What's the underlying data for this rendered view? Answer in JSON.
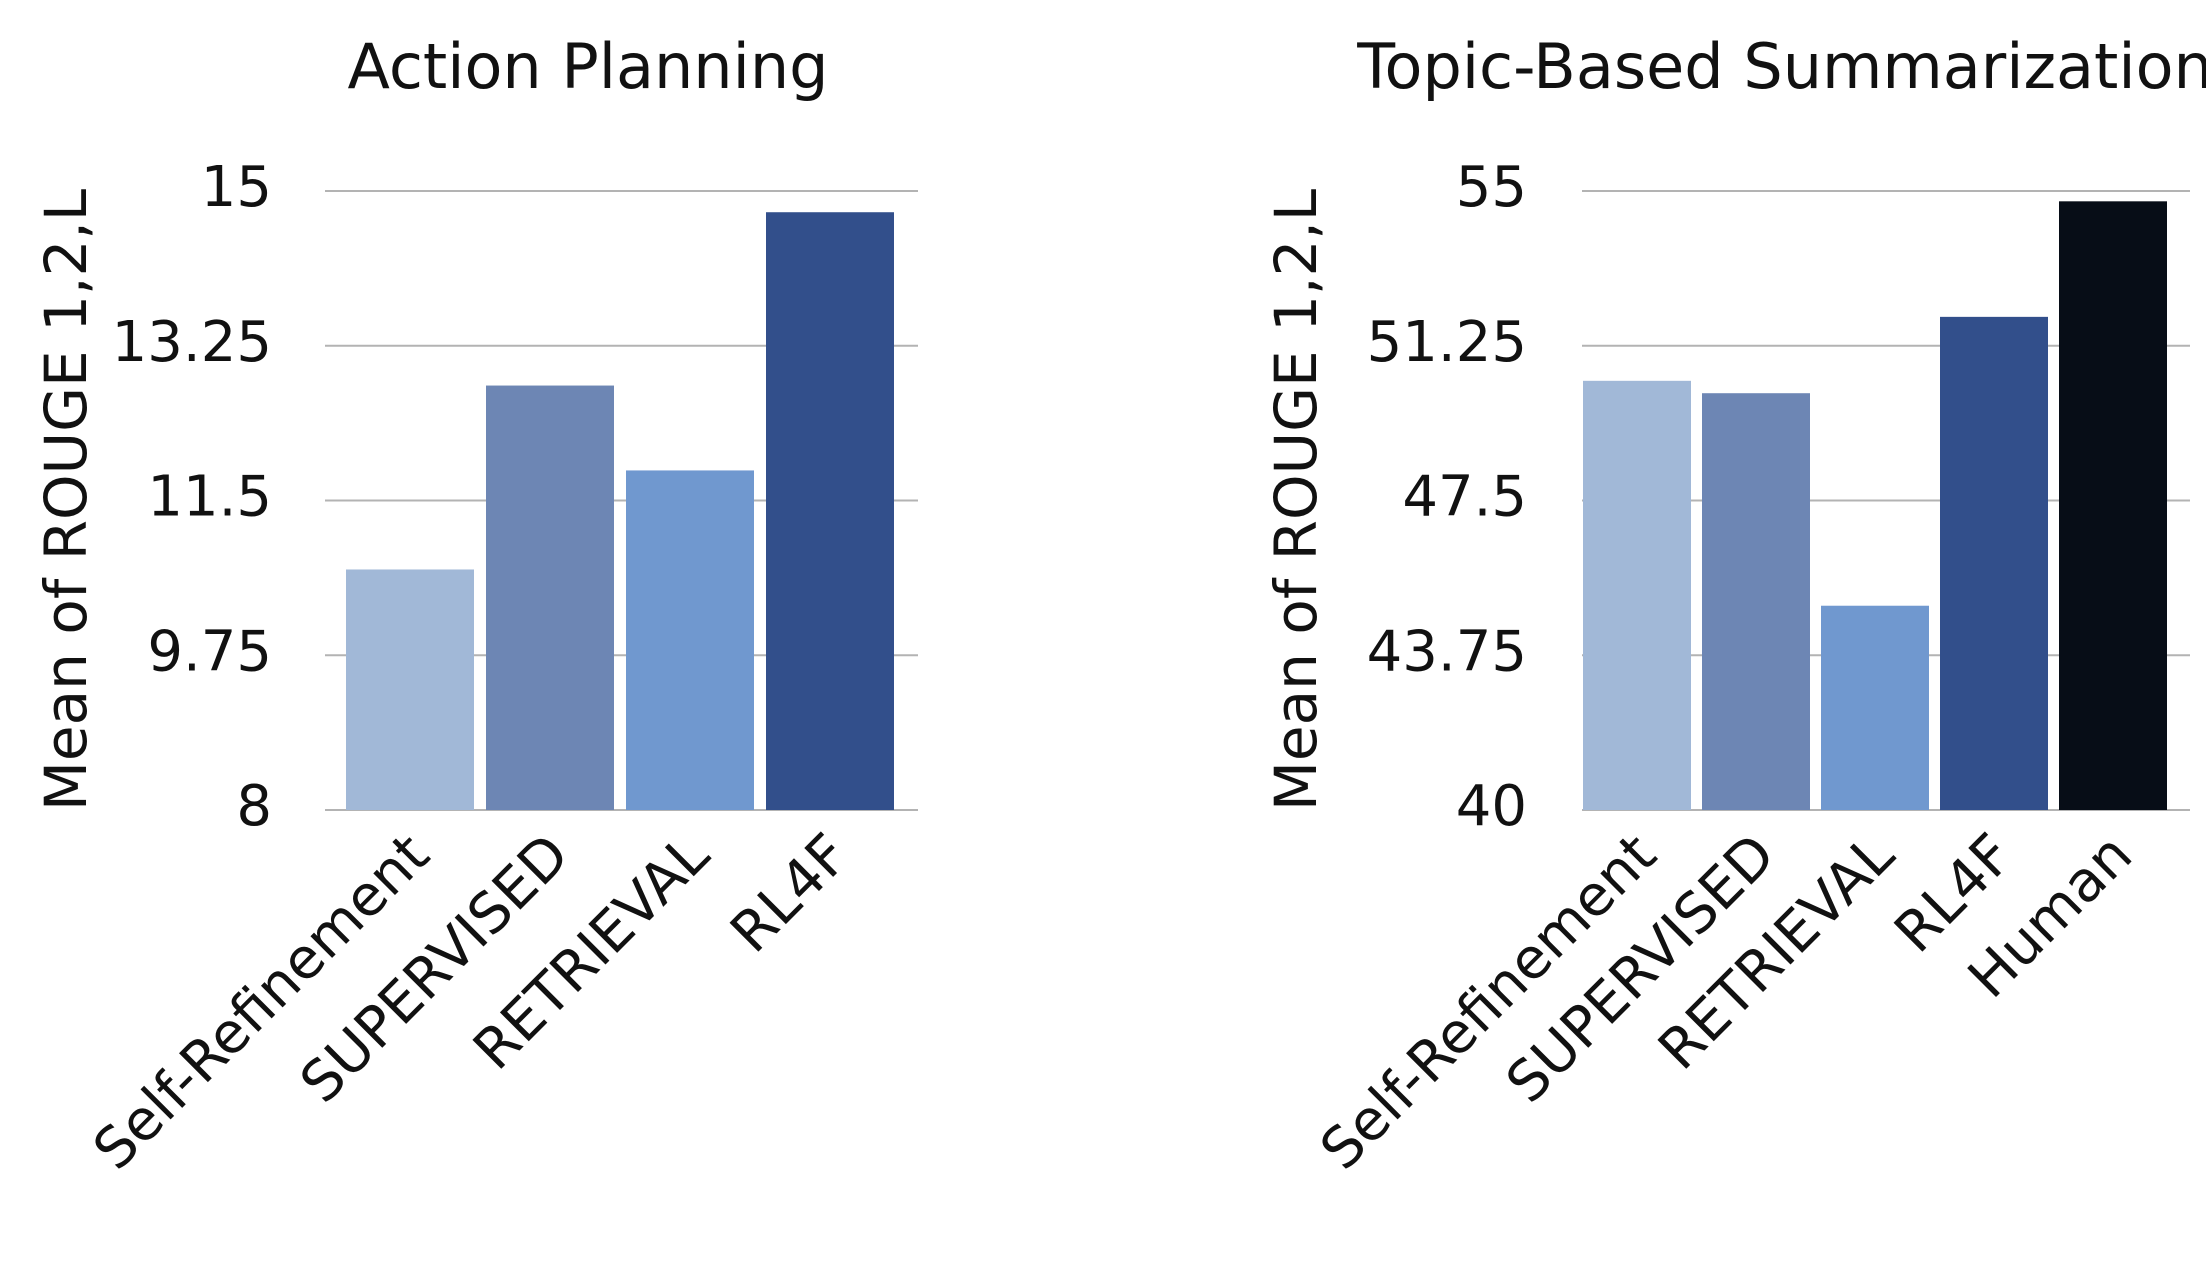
{
  "chart_data": [
    {
      "type": "bar",
      "title": "Action Planning",
      "ylabel": "Mean of ROUGE 1,2,L",
      "xlabel": "",
      "ylim": [
        8,
        15
      ],
      "yticks": [
        "8",
        "9.75",
        "11.5",
        "13.25",
        "15"
      ],
      "grid": true,
      "categories": [
        "Self-Refinement",
        "SUPERVISED",
        "RETRIEVAL",
        "RL4F"
      ],
      "values": [
        10.72,
        12.8,
        11.84,
        14.76
      ],
      "colors": [
        "#a1b8d7",
        "#6d86b4",
        "#7098cf",
        "#324f8b"
      ]
    },
    {
      "type": "bar",
      "title": "Topic-Based Summarization",
      "ylabel": "Mean of ROUGE 1,2,L",
      "xlabel": "",
      "ylim": [
        40,
        55
      ],
      "yticks": [
        "40",
        "43.75",
        "47.5",
        "51.25",
        "55"
      ],
      "grid": true,
      "categories": [
        "Self-Refinement",
        "SUPERVISED",
        "RETRIEVAL",
        "RL4F",
        "Human"
      ],
      "values": [
        50.4,
        50.1,
        44.95,
        51.95,
        54.75
      ],
      "colors": [
        "#a1b8d7",
        "#6d86b4",
        "#7098cf",
        "#324f8b",
        "#070d17"
      ]
    }
  ]
}
